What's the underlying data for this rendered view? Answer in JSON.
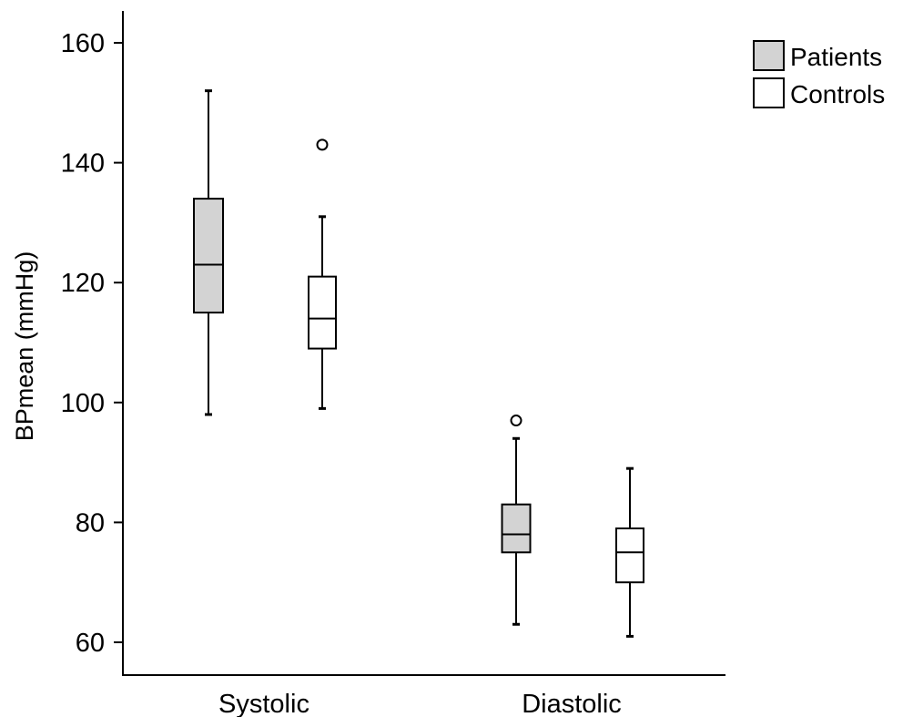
{
  "chart_data": {
    "type": "boxplot",
    "title": "",
    "xlabel": "",
    "ylabel": "BPmean (mmHg)",
    "ylim": [
      55,
      165
    ],
    "yticks": [
      60,
      80,
      100,
      120,
      140,
      160
    ],
    "grid": false,
    "legend_position": "top-right",
    "categories": [
      "Systolic",
      "Diastolic"
    ],
    "series": [
      {
        "name": "Patients",
        "fill": "#d3d3d3",
        "boxes": [
          {
            "category": "Systolic",
            "whisker_low": 98,
            "q1": 115,
            "median": 123,
            "q3": 134,
            "whisker_high": 152,
            "outliers": []
          },
          {
            "category": "Diastolic",
            "whisker_low": 63,
            "q1": 75,
            "median": 78,
            "q3": 83,
            "whisker_high": 94,
            "outliers": [
              97
            ]
          }
        ]
      },
      {
        "name": "Controls",
        "fill": "#ffffff",
        "boxes": [
          {
            "category": "Systolic",
            "whisker_low": 99,
            "q1": 109,
            "median": 114,
            "q3": 121,
            "whisker_high": 131,
            "outliers": [
              143
            ]
          },
          {
            "category": "Diastolic",
            "whisker_low": 61,
            "q1": 70,
            "median": 75,
            "q3": 79,
            "whisker_high": 89,
            "outliers": []
          }
        ]
      }
    ]
  }
}
